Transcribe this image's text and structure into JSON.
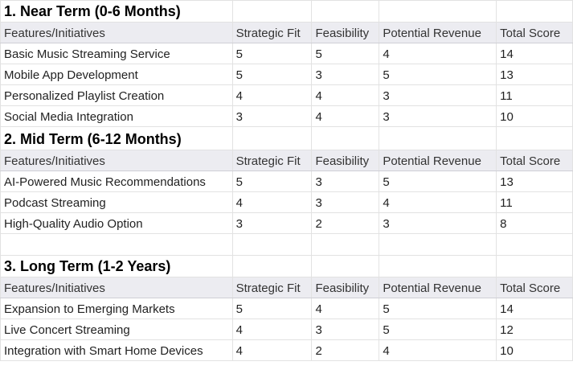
{
  "sections": [
    {
      "title": "1. Near Term (0-6 Months)",
      "headers": [
        "Features/Initiatives",
        "Strategic Fit",
        "Feasibility",
        "Potential Revenue",
        "Total Score"
      ],
      "rows": [
        [
          "Basic Music Streaming Service",
          "5",
          "5",
          "4",
          "14"
        ],
        [
          "Mobile App Development",
          "5",
          "3",
          "5",
          "13"
        ],
        [
          "Personalized Playlist Creation",
          "4",
          "4",
          "3",
          "11"
        ],
        [
          "Social Media Integration",
          "3",
          "4",
          "3",
          "10"
        ]
      ]
    },
    {
      "title": "2. Mid Term (6-12 Months)",
      "headers": [
        "Features/Initiatives",
        "Strategic Fit",
        "Feasibility",
        "Potential Revenue",
        "Total Score"
      ],
      "rows": [
        [
          "AI-Powered Music Recommendations",
          "5",
          "3",
          "5",
          "13"
        ],
        [
          "Podcast Streaming",
          "4",
          "3",
          "4",
          "11"
        ],
        [
          "High-Quality Audio Option",
          "3",
          "2",
          "3",
          "8"
        ]
      ]
    },
    {
      "title": "3. Long Term (1-2 Years)",
      "headers": [
        "Features/Initiatives",
        "Strategic Fit",
        "Feasibility",
        "Potential Revenue",
        "Total Score"
      ],
      "rows": [
        [
          "Expansion to Emerging Markets",
          "5",
          "4",
          "5",
          "14"
        ],
        [
          "Live Concert Streaming",
          "4",
          "3",
          "5",
          "12"
        ],
        [
          "Integration with Smart Home Devices",
          "4",
          "2",
          "4",
          "10"
        ]
      ]
    }
  ]
}
